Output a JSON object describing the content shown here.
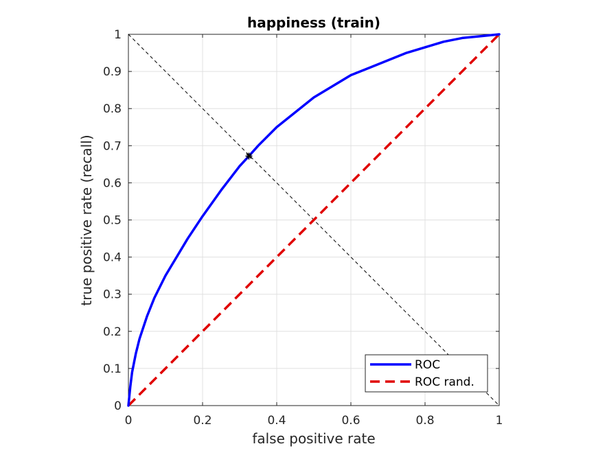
{
  "chart_data": {
    "type": "line",
    "title": "happiness (train)",
    "xlabel": "false positive rate",
    "ylabel": "true positive rate (recall)",
    "xlim": [
      0,
      1
    ],
    "ylim": [
      0,
      1
    ],
    "xticks": [
      "0",
      "0.2",
      "0.4",
      "0.6",
      "0.8",
      "1"
    ],
    "yticks": [
      "0",
      "0.1",
      "0.2",
      "0.3",
      "0.4",
      "0.5",
      "0.6",
      "0.7",
      "0.8",
      "0.9",
      "1"
    ],
    "grid": true,
    "legend_position": "bottom-right",
    "series": [
      {
        "name": "ROC",
        "color": "#0000ff",
        "style": "solid",
        "x": [
          0,
          0.005,
          0.01,
          0.02,
          0.03,
          0.05,
          0.07,
          0.1,
          0.13,
          0.16,
          0.2,
          0.25,
          0.3,
          0.325,
          0.35,
          0.4,
          0.45,
          0.5,
          0.55,
          0.6,
          0.65,
          0.7,
          0.75,
          0.8,
          0.85,
          0.9,
          0.95,
          1.0
        ],
        "y": [
          0,
          0.05,
          0.09,
          0.14,
          0.18,
          0.24,
          0.29,
          0.35,
          0.4,
          0.45,
          0.51,
          0.58,
          0.645,
          0.672,
          0.7,
          0.75,
          0.79,
          0.83,
          0.86,
          0.89,
          0.91,
          0.93,
          0.95,
          0.965,
          0.98,
          0.99,
          0.995,
          1.0
        ]
      },
      {
        "name": "ROC rand.",
        "color": "#e00000",
        "style": "dashed",
        "x": [
          0,
          1
        ],
        "y": [
          0,
          1
        ]
      }
    ],
    "reference_line": {
      "color": "#000000",
      "style": "dashed",
      "x": [
        0,
        1
      ],
      "y": [
        1,
        0
      ]
    },
    "marker": {
      "symbol": "asterisk",
      "color": "#000000",
      "x": 0.325,
      "y": 0.672
    }
  }
}
